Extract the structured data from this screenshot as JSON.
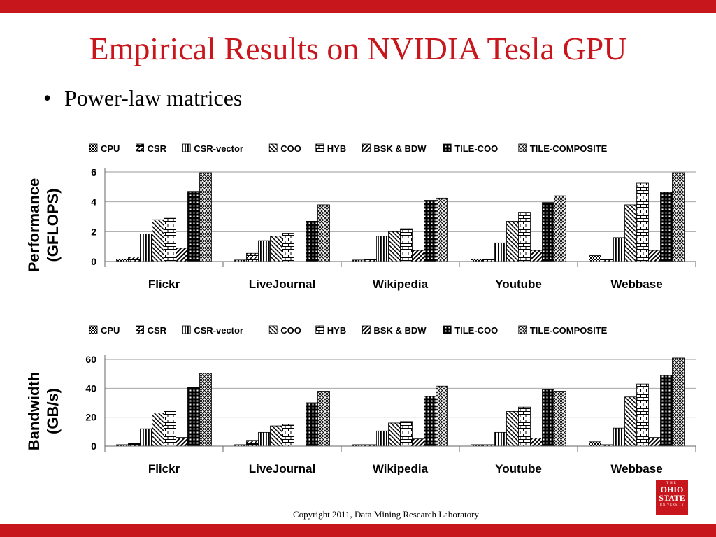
{
  "slide": {
    "title": "Empirical Results on NVIDIA Tesla GPU",
    "bullet": "Power-law matrices",
    "copyright": "Copyright 2011, Data Mining Research Laboratory",
    "logo": {
      "line1": "THE",
      "line2": "OHIO",
      "line3": "STATE",
      "line4": "UNIVERSITY"
    },
    "accent_color": "#c8161d"
  },
  "chart_data": [
    {
      "type": "bar",
      "title": "",
      "ylabel": "Performance (GFLOPS)",
      "xlabel": "",
      "ylim": [
        0,
        6
      ],
      "yticks": [
        0,
        2,
        4,
        6
      ],
      "grid": true,
      "legend_position": "top",
      "categories": [
        "Flickr",
        "LiveJournal",
        "Wikipedia",
        "Youtube",
        "Webbase"
      ],
      "series": [
        {
          "name": "CPU",
          "values": [
            0.15,
            0.1,
            0.1,
            0.15,
            0.4
          ]
        },
        {
          "name": "CSR",
          "values": [
            0.3,
            0.55,
            0.15,
            0.15,
            0.15
          ]
        },
        {
          "name": "CSR-vector",
          "values": [
            1.85,
            1.4,
            1.7,
            1.25,
            1.6
          ]
        },
        {
          "name": "COO",
          "values": [
            2.8,
            1.7,
            2.0,
            2.7,
            3.8
          ]
        },
        {
          "name": "HYB",
          "values": [
            2.9,
            1.9,
            2.2,
            3.3,
            5.25
          ]
        },
        {
          "name": "BSK & BDW",
          "values": [
            0.9,
            0.0,
            0.75,
            0.75,
            0.75
          ]
        },
        {
          "name": "TILE-COO",
          "values": [
            4.7,
            2.7,
            4.1,
            3.95,
            4.65
          ]
        },
        {
          "name": "TILE-COMPOSITE",
          "values": [
            5.95,
            3.8,
            4.25,
            4.4,
            5.95
          ]
        }
      ]
    },
    {
      "type": "bar",
      "title": "",
      "ylabel": "Bandwidth (GB/s)",
      "xlabel": "",
      "ylim": [
        0,
        60
      ],
      "yticks": [
        0,
        20,
        40,
        60
      ],
      "grid": true,
      "legend_position": "top",
      "categories": [
        "Flickr",
        "LiveJournal",
        "Wikipedia",
        "Youtube",
        "Webbase"
      ],
      "series": [
        {
          "name": "CPU",
          "values": [
            1,
            1,
            1,
            1,
            3
          ]
        },
        {
          "name": "CSR",
          "values": [
            2,
            4,
            1,
            1,
            1
          ]
        },
        {
          "name": "CSR-vector",
          "values": [
            12,
            9.5,
            10.5,
            9.5,
            12.5
          ]
        },
        {
          "name": "COO",
          "values": [
            23,
            14,
            16,
            24,
            34
          ]
        },
        {
          "name": "HYB",
          "values": [
            24,
            15,
            17,
            27,
            43
          ]
        },
        {
          "name": "BSK & BDW",
          "values": [
            6,
            0,
            5,
            5.5,
            6
          ]
        },
        {
          "name": "TILE-COO",
          "values": [
            40.5,
            30,
            34.5,
            39,
            49
          ]
        },
        {
          "name": "TILE-COMPOSITE",
          "values": [
            50.5,
            38,
            41.5,
            38,
            61
          ]
        }
      ]
    }
  ]
}
